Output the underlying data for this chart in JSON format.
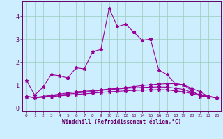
{
  "xlabel": "Windchill (Refroidissement éolien,°C)",
  "bg_color": "#cceeff",
  "line_color": "#990099",
  "grid_color": "#99ccbb",
  "axis_color": "#660066",
  "text_color": "#660066",
  "xlim": [
    -0.5,
    23.5
  ],
  "ylim": [
    -0.15,
    4.65
  ],
  "xticks": [
    0,
    1,
    2,
    3,
    4,
    5,
    6,
    7,
    8,
    9,
    10,
    11,
    12,
    13,
    14,
    15,
    16,
    17,
    18,
    19,
    20,
    21,
    22,
    23
  ],
  "yticks": [
    0,
    1,
    2,
    3,
    4
  ],
  "line1_y": [
    1.2,
    0.55,
    0.9,
    1.45,
    1.4,
    1.3,
    1.75,
    1.7,
    2.45,
    2.55,
    4.35,
    3.55,
    3.65,
    3.3,
    2.95,
    3.0,
    1.65,
    1.45,
    1.05,
    1.0,
    0.75,
    0.5,
    0.5,
    0.45
  ],
  "line2_y": [
    0.5,
    0.45,
    0.5,
    0.55,
    0.6,
    0.65,
    0.7,
    0.72,
    0.75,
    0.78,
    0.82,
    0.85,
    0.88,
    0.92,
    0.97,
    1.0,
    1.03,
    1.05,
    1.05,
    1.0,
    0.85,
    0.7,
    0.5,
    0.45
  ],
  "line3_y": [
    0.5,
    0.45,
    0.48,
    0.52,
    0.56,
    0.6,
    0.64,
    0.68,
    0.72,
    0.76,
    0.79,
    0.82,
    0.85,
    0.87,
    0.89,
    0.9,
    0.91,
    0.9,
    0.86,
    0.8,
    0.68,
    0.57,
    0.5,
    0.44
  ],
  "line4_y": [
    0.5,
    0.44,
    0.46,
    0.49,
    0.52,
    0.55,
    0.58,
    0.61,
    0.64,
    0.67,
    0.7,
    0.72,
    0.74,
    0.76,
    0.77,
    0.78,
    0.79,
    0.78,
    0.74,
    0.7,
    0.62,
    0.54,
    0.49,
    0.43
  ]
}
